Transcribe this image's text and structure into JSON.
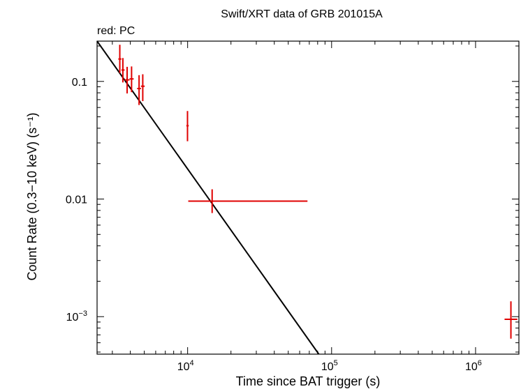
{
  "chart_data": {
    "type": "scatter",
    "title": "Swift/XRT data of GRB 201015A",
    "subtitle": "red: PC",
    "xlabel": "Time since BAT trigger (s)",
    "ylabel": "Count Rate (0.3−10 keV) (s⁻¹)",
    "xscale": "log",
    "yscale": "log",
    "xlim": [
      2350,
      2000000
    ],
    "ylim": [
      0.00048,
      0.22
    ],
    "grid": false,
    "x_ticks": [
      {
        "value": 10000,
        "base": "10",
        "exp": "4"
      },
      {
        "value": 100000,
        "base": "10",
        "exp": "5"
      },
      {
        "value": 1000000,
        "base": "10",
        "exp": "6"
      }
    ],
    "y_ticks": [
      {
        "value": 0.1,
        "label": "0.1"
      },
      {
        "value": 0.01,
        "label": "0.01"
      },
      {
        "value": 0.001,
        "base": "10",
        "exp": "−3"
      }
    ],
    "series": [
      {
        "color": "#e00000",
        "points": [
          {
            "x": 3380,
            "xlo": 3300,
            "xhi": 3470,
            "y": 0.155,
            "ylo": 0.118,
            "yhi": 0.205
          },
          {
            "x": 3550,
            "xlo": 3470,
            "xhi": 3650,
            "y": 0.125,
            "ylo": 0.098,
            "yhi": 0.158
          },
          {
            "x": 3800,
            "xlo": 3650,
            "xhi": 3950,
            "y": 0.103,
            "ylo": 0.079,
            "yhi": 0.133
          },
          {
            "x": 4080,
            "xlo": 3950,
            "xhi": 4220,
            "y": 0.105,
            "ylo": 0.081,
            "yhi": 0.134
          },
          {
            "x": 4600,
            "xlo": 4460,
            "xhi": 4740,
            "y": 0.087,
            "ylo": 0.063,
            "yhi": 0.113
          },
          {
            "x": 4880,
            "xlo": 4740,
            "xhi": 5030,
            "y": 0.091,
            "ylo": 0.068,
            "yhi": 0.115
          },
          {
            "x": 9980,
            "xlo": 9800,
            "xhi": 10180,
            "y": 0.042,
            "ylo": 0.031,
            "yhi": 0.056
          },
          {
            "x": 14800,
            "xlo": 10100,
            "xhi": 68000,
            "y": 0.0096,
            "ylo": 0.0076,
            "yhi": 0.0121
          },
          {
            "x": 1760000,
            "xlo": 1590000,
            "xhi": 1950000,
            "y": 0.00095,
            "ylo": 0.00065,
            "yhi": 0.00135
          }
        ]
      }
    ],
    "model": {
      "color": "#000000",
      "x": [
        2350,
        81500
      ],
      "y": [
        0.22,
        0.00048
      ]
    }
  }
}
